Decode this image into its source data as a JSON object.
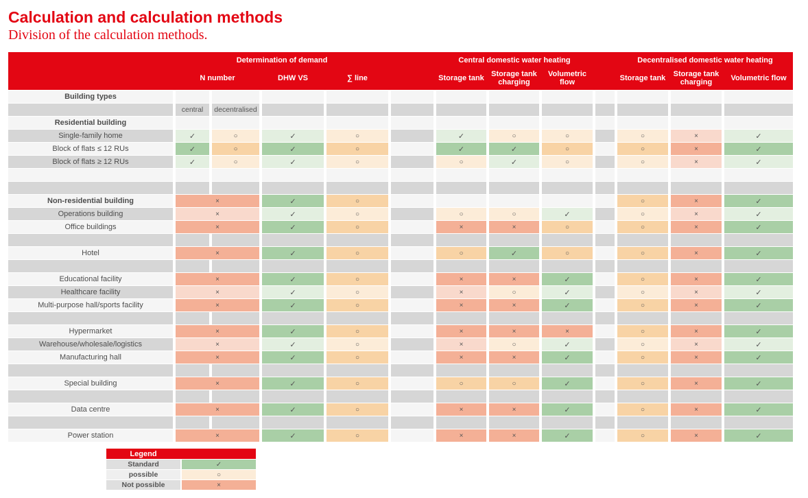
{
  "page": {
    "title": "Calculation and calculation methods",
    "subtitle": "Division of the calculation methods."
  },
  "colors": {
    "red": "#e30613",
    "row_light": "#f5f5f5",
    "row_gray": "#d6d6d6",
    "standard_green": "#a9cfa6",
    "standard_green_soft": "#e3efe0",
    "possible_orange": "#f8d3a5",
    "possible_orange_soft": "#fcecd8",
    "not_possible_salmon": "#f4b096",
    "not_possible_salmon_soft": "#f9d9cc"
  },
  "symbols": {
    "check": "✓",
    "circle": "○",
    "cross": "×"
  },
  "table": {
    "groups": [
      {
        "label": "Determination of demand"
      },
      {
        "label": "Central domestic water heating"
      },
      {
        "label": "Decentralised domestic water heating"
      }
    ],
    "columns": [
      "N number",
      "DHW VS",
      "∑ line",
      "Storage tank",
      "Storage tank charging",
      "Volumetric flow",
      "Storage tank",
      "Storage tank charging",
      "Volumetric flow"
    ],
    "subheader": {
      "central": "central",
      "decentralised": "decentralised"
    },
    "rows": [
      {
        "label": "Building types",
        "bold": true,
        "shade": "light",
        "cells": [
          "",
          "",
          "",
          "",
          "",
          "",
          "",
          "",
          "",
          "",
          "",
          ""
        ]
      },
      {
        "label": "",
        "shade": "gray",
        "cells": [
          "txt:central",
          "txt:decentralised",
          "",
          "",
          "",
          "",
          "",
          "",
          "",
          "",
          "",
          ""
        ]
      },
      {
        "label": "Residential building",
        "bold": true,
        "shade": "light",
        "cells": [
          "",
          "",
          "",
          "",
          "",
          "",
          "",
          "",
          "",
          "",
          "",
          ""
        ]
      },
      {
        "label": "Single-family home",
        "shade": "gray",
        "cells": [
          "check",
          "circle",
          "check",
          "circle",
          "",
          "check",
          "circle",
          "circle",
          "",
          "circle",
          "cross",
          "check"
        ]
      },
      {
        "label": "Block of flats ≤ 12 RUs",
        "shade": "light",
        "cells": [
          "check",
          "circle",
          "check",
          "circle",
          "",
          "check",
          "check",
          "circle",
          "",
          "circle",
          "cross",
          "check"
        ]
      },
      {
        "label": "Block of flats ≥ 12 RUs",
        "shade": "gray",
        "cells": [
          "check",
          "circle",
          "check",
          "circle",
          "",
          "circle",
          "check",
          "circle",
          "",
          "circle",
          "cross",
          "check"
        ]
      },
      {
        "label": "",
        "shade": "light",
        "cells": [
          "",
          "",
          "",
          "",
          "",
          "",
          "",
          "",
          "",
          "",
          "",
          ""
        ]
      },
      {
        "label": "",
        "shade": "gray",
        "cells": [
          "",
          "",
          "",
          "",
          "",
          "",
          "",
          "",
          "",
          "",
          "",
          ""
        ]
      },
      {
        "label": "Non-residential building",
        "bold": true,
        "shade": "light",
        "merge_n": true,
        "cells": [
          "cross",
          "check",
          "circle",
          "",
          "",
          "",
          "",
          "",
          "circle",
          "cross",
          "check"
        ]
      },
      {
        "label": "Operations building",
        "shade": "gray",
        "merge_n": true,
        "cells": [
          "cross",
          "check",
          "circle",
          "",
          "circle",
          "circle",
          "check",
          "",
          "circle",
          "cross",
          "check"
        ]
      },
      {
        "label": "Office buildings",
        "shade": "light",
        "merge_n": true,
        "cells": [
          "cross",
          "check",
          "circle",
          "",
          "cross",
          "cross",
          "circle",
          "",
          "circle",
          "cross",
          "check"
        ]
      },
      {
        "label": "",
        "shade": "gray",
        "cells": [
          "",
          "",
          "",
          "",
          "",
          "",
          "",
          "",
          "",
          "",
          "",
          ""
        ]
      },
      {
        "label": "Hotel",
        "shade": "light",
        "merge_n": true,
        "cells": [
          "cross",
          "check",
          "circle",
          "",
          "circle",
          "check",
          "circle",
          "",
          "circle",
          "cross",
          "check"
        ]
      },
      {
        "label": "",
        "shade": "gray",
        "cells": [
          "",
          "",
          "",
          "",
          "",
          "",
          "",
          "",
          "",
          "",
          "",
          ""
        ]
      },
      {
        "label": "Educational facility",
        "shade": "light",
        "merge_n": true,
        "cells": [
          "cross",
          "check",
          "circle",
          "",
          "cross",
          "cross",
          "check",
          "",
          "circle",
          "cross",
          "check"
        ]
      },
      {
        "label": "Healthcare facility",
        "shade": "gray",
        "merge_n": true,
        "cells": [
          "cross",
          "check",
          "circle",
          "",
          "cross",
          "circle",
          "check",
          "",
          "circle",
          "cross",
          "check"
        ]
      },
      {
        "label": "Multi-purpose hall/sports facility",
        "shade": "light",
        "merge_n": true,
        "cells": [
          "cross",
          "check",
          "circle",
          "",
          "cross",
          "cross",
          "check",
          "",
          "circle",
          "cross",
          "check"
        ]
      },
      {
        "label": "",
        "shade": "gray",
        "cells": [
          "",
          "",
          "",
          "",
          "",
          "",
          "",
          "",
          "",
          "",
          "",
          ""
        ]
      },
      {
        "label": "Hypermarket",
        "shade": "light",
        "merge_n": true,
        "cells": [
          "cross",
          "check",
          "circle",
          "",
          "cross",
          "cross",
          "cross",
          "",
          "circle",
          "cross",
          "check"
        ]
      },
      {
        "label": "Warehouse/wholesale/logistics",
        "shade": "gray",
        "merge_n": true,
        "cells": [
          "cross",
          "check",
          "circle",
          "",
          "cross",
          "circle",
          "check",
          "",
          "circle",
          "cross",
          "check"
        ]
      },
      {
        "label": "Manufacturing hall",
        "shade": "light",
        "merge_n": true,
        "cells": [
          "cross",
          "check",
          "circle",
          "",
          "cross",
          "cross",
          "check",
          "",
          "circle",
          "cross",
          "check"
        ]
      },
      {
        "label": "",
        "shade": "gray",
        "cells": [
          "",
          "",
          "",
          "",
          "",
          "",
          "",
          "",
          "",
          "",
          "",
          ""
        ]
      },
      {
        "label": "Special building",
        "shade": "light",
        "merge_n": true,
        "cells": [
          "cross",
          "check",
          "circle",
          "",
          "circle",
          "circle",
          "check",
          "",
          "circle",
          "cross",
          "check"
        ]
      },
      {
        "label": "",
        "shade": "gray",
        "cells": [
          "",
          "",
          "",
          "",
          "",
          "",
          "",
          "",
          "",
          "",
          "",
          ""
        ]
      },
      {
        "label": "Data centre",
        "shade": "light",
        "merge_n": true,
        "cells": [
          "cross",
          "check",
          "circle",
          "",
          "cross",
          "cross",
          "check",
          "",
          "circle",
          "cross",
          "check"
        ]
      },
      {
        "label": "",
        "shade": "gray",
        "cells": [
          "",
          "",
          "",
          "",
          "",
          "",
          "",
          "",
          "",
          "",
          "",
          ""
        ]
      },
      {
        "label": "Power station",
        "shade": "light",
        "merge_n": true,
        "cells": [
          "cross",
          "check",
          "circle",
          "",
          "cross",
          "cross",
          "check",
          "",
          "circle",
          "cross",
          "check"
        ]
      }
    ]
  },
  "legend": {
    "title": "Legend",
    "items": [
      {
        "label": "Standard",
        "symbol": "check"
      },
      {
        "label": "possible",
        "symbol": "circle"
      },
      {
        "label": "Not possible",
        "symbol": "cross"
      }
    ]
  }
}
